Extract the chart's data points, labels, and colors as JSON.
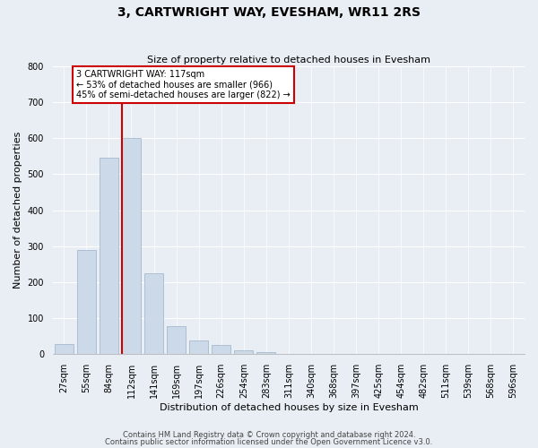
{
  "title": "3, CARTWRIGHT WAY, EVESHAM, WR11 2RS",
  "subtitle": "Size of property relative to detached houses in Evesham",
  "xlabel": "Distribution of detached houses by size in Evesham",
  "ylabel": "Number of detached properties",
  "footnote1": "Contains HM Land Registry data © Crown copyright and database right 2024.",
  "footnote2": "Contains public sector information licensed under the Open Government Licence v3.0.",
  "bar_labels": [
    "27sqm",
    "55sqm",
    "84sqm",
    "112sqm",
    "141sqm",
    "169sqm",
    "197sqm",
    "226sqm",
    "254sqm",
    "283sqm",
    "311sqm",
    "340sqm",
    "368sqm",
    "397sqm",
    "425sqm",
    "454sqm",
    "482sqm",
    "511sqm",
    "539sqm",
    "568sqm",
    "596sqm"
  ],
  "bar_heights": [
    28,
    290,
    545,
    600,
    225,
    78,
    38,
    25,
    12,
    5,
    0,
    0,
    0,
    0,
    0,
    0,
    0,
    0,
    0,
    0,
    0
  ],
  "bar_color": "#ccd9e8",
  "bar_edge_color": "#9ab0c8",
  "vline_color": "#cc0000",
  "vline_bar_index": 3,
  "ylim": [
    0,
    800
  ],
  "yticks": [
    0,
    100,
    200,
    300,
    400,
    500,
    600,
    700,
    800
  ],
  "annotation_line1": "3 CARTWRIGHT WAY: 117sqm",
  "annotation_line2": "← 53% of detached houses are smaller (966)",
  "annotation_line3": "45% of semi-detached houses are larger (822) →",
  "annotation_box_color": "#ffffff",
  "annotation_box_edge": "#cc0000",
  "bg_color": "#e8eef4",
  "grid_color": "#ffffff",
  "title_fontsize": 10,
  "subtitle_fontsize": 8,
  "tick_fontsize": 7,
  "label_fontsize": 8,
  "footnote_fontsize": 6
}
